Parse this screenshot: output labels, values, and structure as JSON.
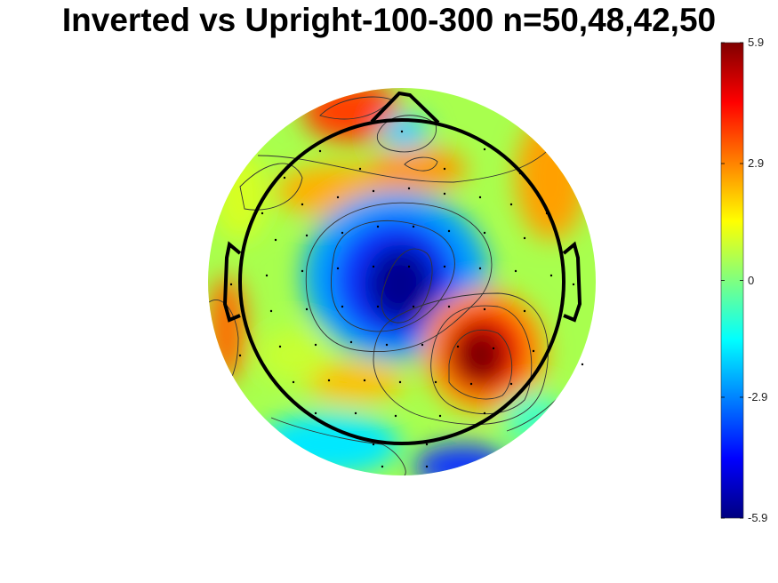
{
  "title": "Inverted vs Upright-100-300 n=50,48,42,50",
  "chart_data": {
    "type": "heatmap",
    "title": "Inverted vs Upright-100-300 n=50,48,42,50",
    "colormap": "jet",
    "clim": [
      -5.9,
      5.9
    ],
    "colorbar": {
      "ticks": [
        "5.9",
        "2.9",
        "0",
        "-2.9",
        "-5.9"
      ],
      "tick_values": [
        5.9,
        2.9,
        0,
        -2.9,
        -5.9
      ],
      "position": "right"
    },
    "features": [
      {
        "label": "central-left negative",
        "peak_value": -5.9
      },
      {
        "label": "central-right posterior positive",
        "peak_value": 5.9
      },
      {
        "label": "frontal positive",
        "peak_value": 4.5
      },
      {
        "label": "posterior negative",
        "peak_value": -4.5
      }
    ]
  }
}
